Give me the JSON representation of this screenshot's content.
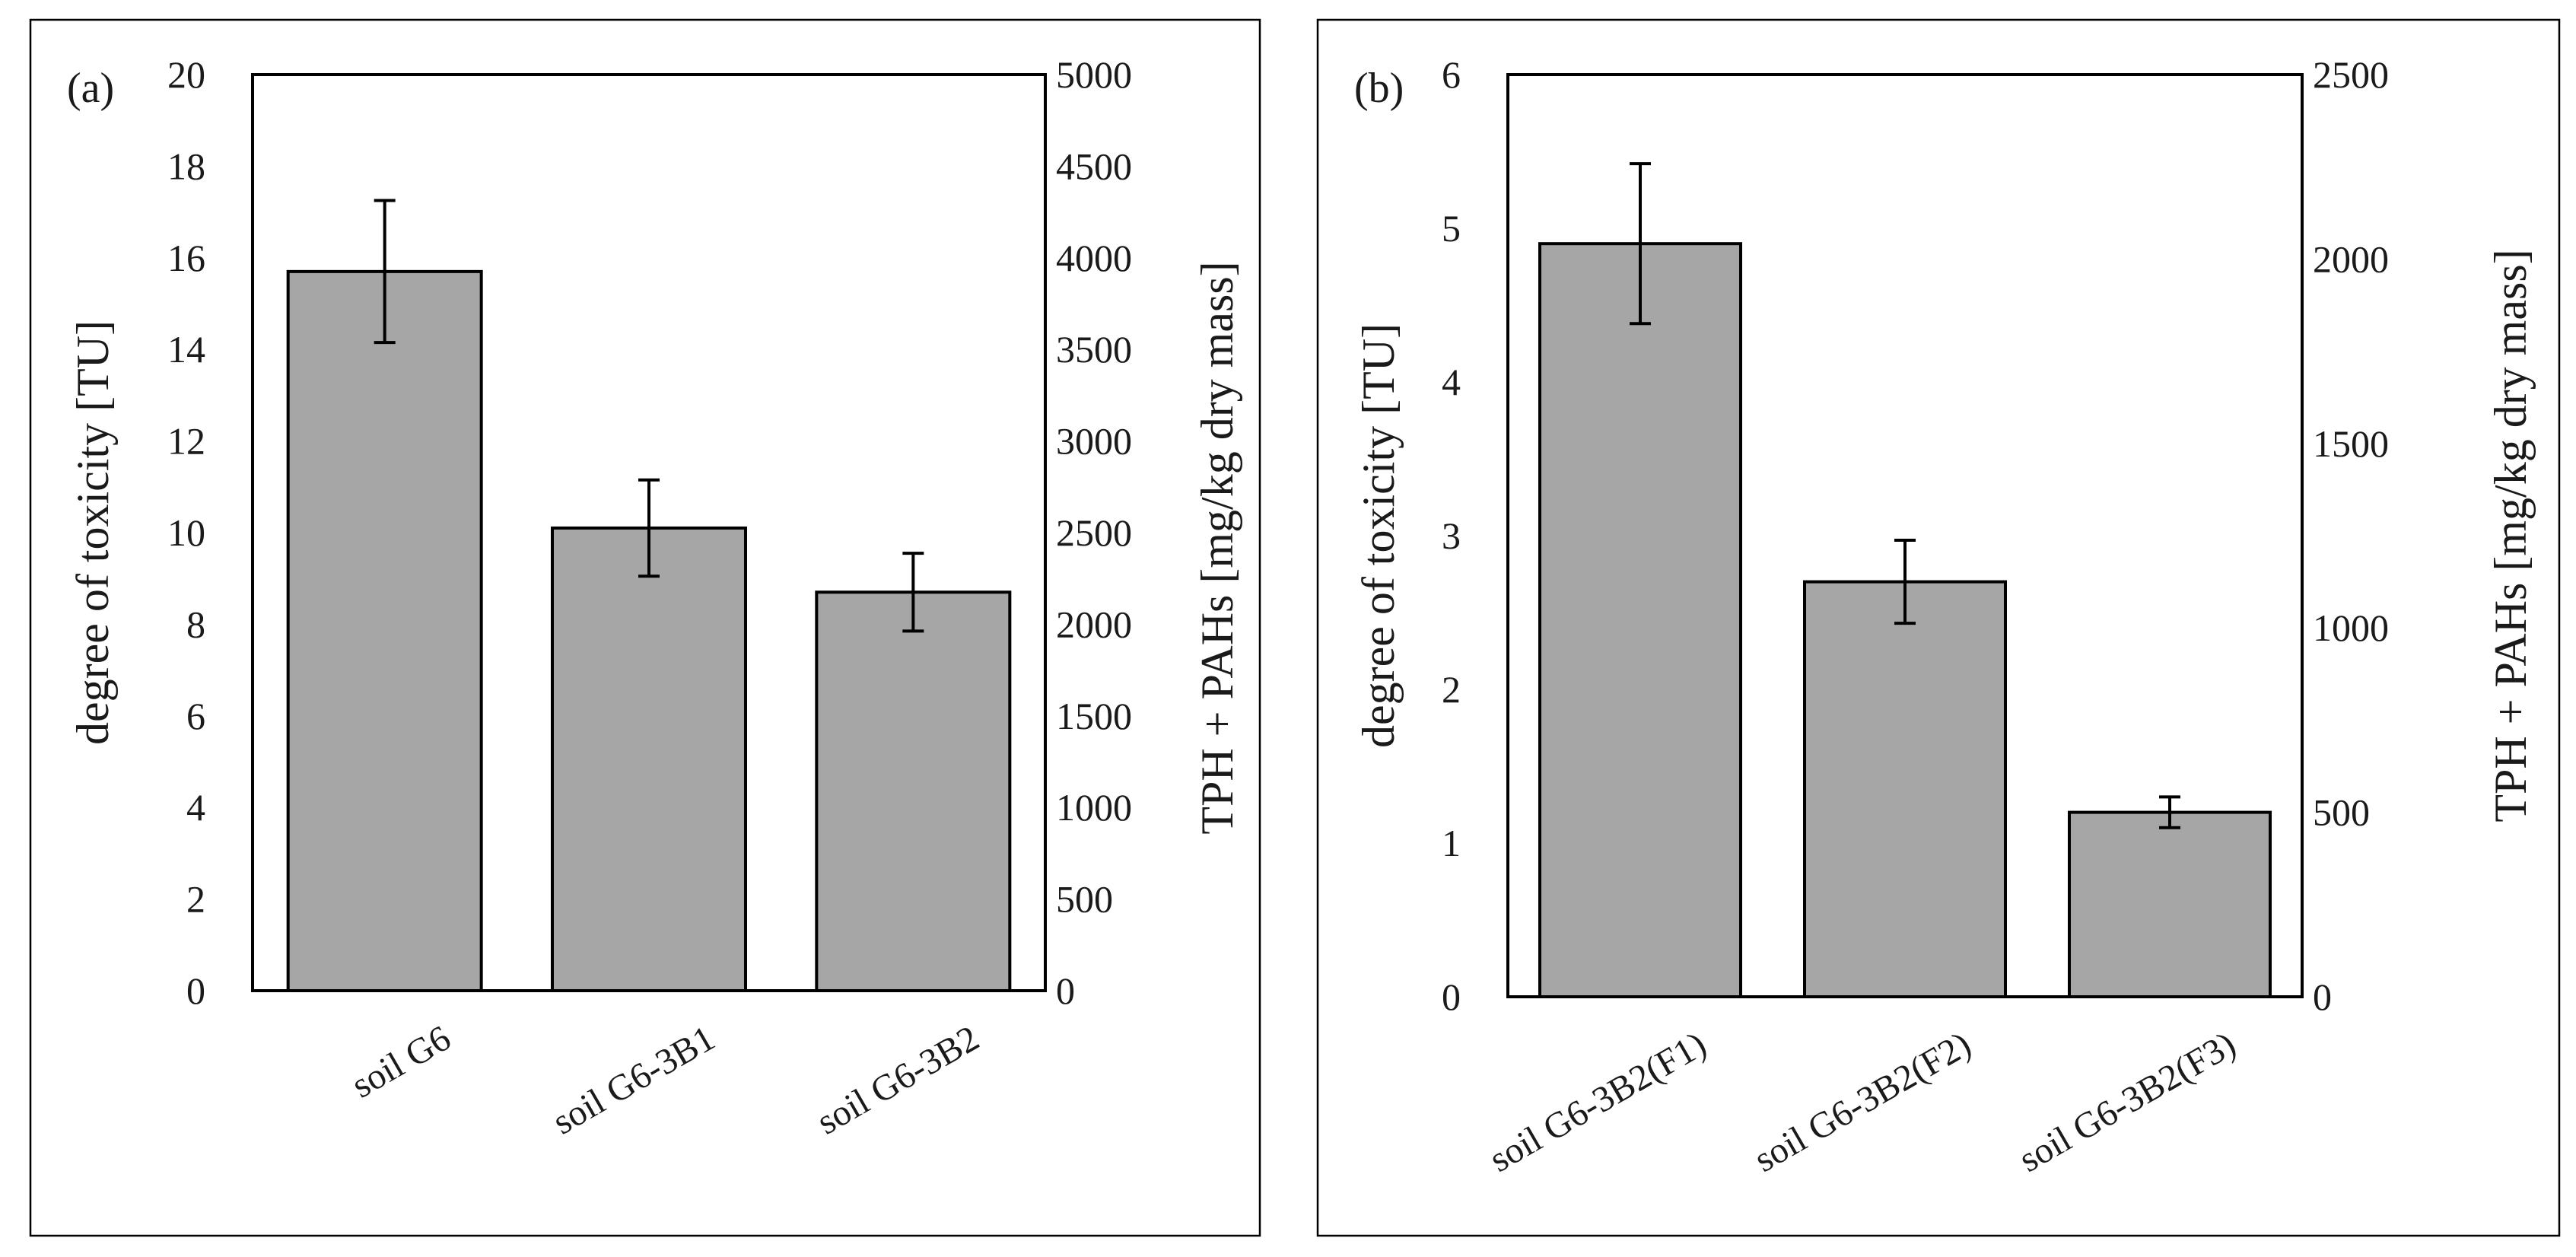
{
  "chart_data": [
    {
      "type": "bar",
      "panel_label": "(a)",
      "categories": [
        "soil G6",
        "soil G6-3B1",
        "soil G6-3B2"
      ],
      "values": [
        15.7,
        10.1,
        8.7
      ],
      "error": [
        1.55,
        1.05,
        0.85
      ],
      "ylabel": "degree of toxicity [TU]",
      "ylim": [
        0,
        20
      ],
      "yticks": [
        "0",
        "2",
        "4",
        "6",
        "8",
        "10",
        "12",
        "14",
        "16",
        "18",
        "20"
      ],
      "y2label": "TPH + PAHs [mg/kg dry mass]",
      "y2lim": [
        0,
        5000
      ],
      "y2ticks": [
        "0",
        "500",
        "1000",
        "1500",
        "2000",
        "2500",
        "3000",
        "3500",
        "4000",
        "4500",
        "5000"
      ],
      "bar_color": "#a6a6a6"
    },
    {
      "type": "bar",
      "panel_label": "(b)",
      "categories": [
        "soil G6-3B2(F1)",
        "soil G6-3B2(F2)",
        "soil G6-3B2(F3)"
      ],
      "values": [
        4.9,
        2.7,
        1.2
      ],
      "error": [
        0.52,
        0.27,
        0.1
      ],
      "ylabel": "degree of toxicity [TU]",
      "ylim": [
        0,
        6
      ],
      "yticks": [
        "0",
        "1",
        "2",
        "3",
        "4",
        "5",
        "6"
      ],
      "y2label": "TPH + PAHs [mg/kg dry mass]",
      "y2lim": [
        0,
        2500
      ],
      "y2ticks": [
        "0",
        "500",
        "1000",
        "1500",
        "2000",
        "2500"
      ],
      "bar_color": "#a6a6a6"
    }
  ]
}
